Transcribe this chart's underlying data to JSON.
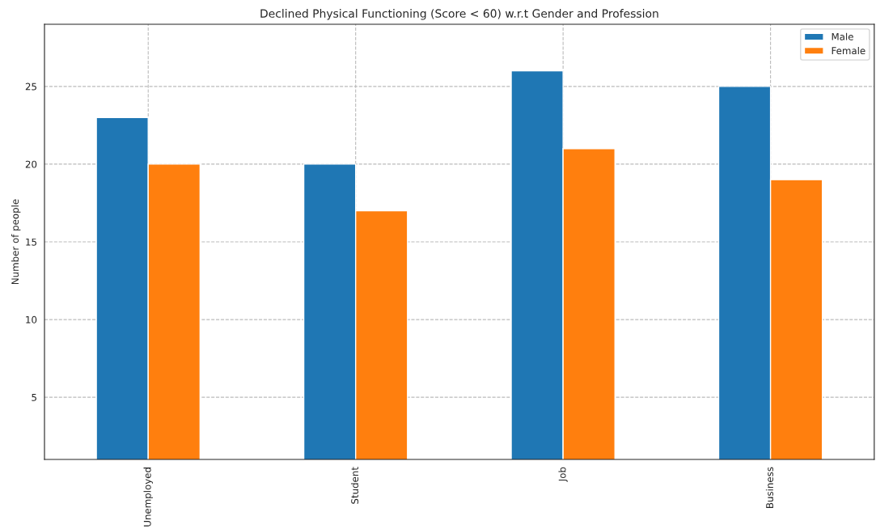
{
  "chart_data": {
    "type": "bar",
    "title": "Declined Physical Functioning (Score < 60) w.r.t Gender and Profession",
    "ylabel": "Number of people",
    "categories": [
      "Unemployed",
      "Student",
      "Job",
      "Business"
    ],
    "series": [
      {
        "name": "Male",
        "color": "#1f77b4",
        "values": [
          23,
          20,
          26,
          25
        ]
      },
      {
        "name": "Female",
        "color": "#ff7f0e",
        "values": [
          20,
          17,
          21,
          19
        ]
      }
    ],
    "ylim": [
      1,
      29
    ],
    "yticks": [
      5,
      10,
      15,
      20,
      25
    ],
    "grid": true,
    "legend": "top right"
  }
}
